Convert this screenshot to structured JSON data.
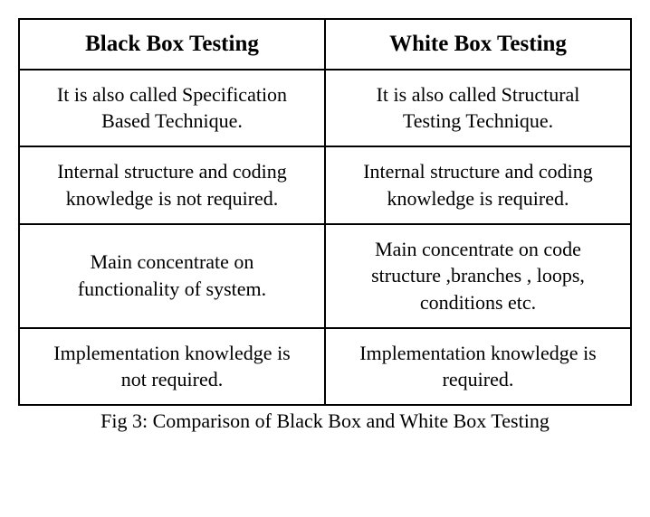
{
  "table": {
    "type": "table",
    "border_color": "#000000",
    "background_color": "#ffffff",
    "text_color": "#000000",
    "font_family": "Times New Roman",
    "header_fontsize_pt": 19,
    "cell_fontsize_pt": 17,
    "caption_fontsize_pt": 17,
    "column_widths": [
      0.5,
      0.5
    ],
    "columns": [
      "Black Box Testing",
      "White Box Testing"
    ],
    "rows": [
      [
        "It is also called Specification Based Technique.",
        "It is also called Structural Testing Technique."
      ],
      [
        "Internal structure and coding knowledge is not required.",
        "Internal structure and coding knowledge is required."
      ],
      [
        "Main concentrate on functionality of system.",
        "Main concentrate on code structure ,branches , loops, conditions etc."
      ],
      [
        "Implementation knowledge is not required.",
        "Implementation knowledge is required."
      ]
    ],
    "caption": "Fig 3: Comparison of Black Box and White Box Testing"
  }
}
